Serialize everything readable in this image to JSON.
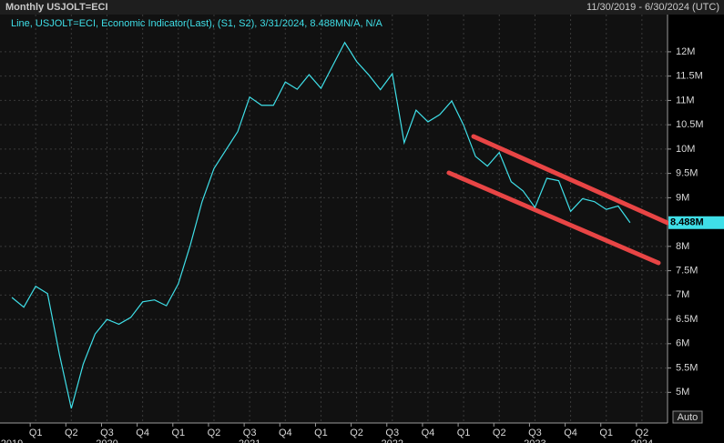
{
  "header": {
    "title": "Monthly USJOLT=ECI",
    "range": "11/30/2019 - 6/30/2024 (UTC)"
  },
  "chart_data": {
    "type": "line",
    "legend_text": "Line, USJOLT=ECI, Economic Indicator(Last), (S1, S2), 3/31/2024, 8.488MN/A, N/A",
    "color": "#3fdfe8",
    "x": [
      "2019-11",
      "2019-12",
      "2020-01",
      "2020-02",
      "2020-03",
      "2020-04",
      "2020-05",
      "2020-06",
      "2020-07",
      "2020-08",
      "2020-09",
      "2020-10",
      "2020-11",
      "2020-12",
      "2021-01",
      "2021-02",
      "2021-03",
      "2021-04",
      "2021-05",
      "2021-06",
      "2021-07",
      "2021-08",
      "2021-09",
      "2021-10",
      "2021-11",
      "2021-12",
      "2022-01",
      "2022-02",
      "2022-03",
      "2022-04",
      "2022-05",
      "2022-06",
      "2022-07",
      "2022-08",
      "2022-09",
      "2022-10",
      "2022-11",
      "2022-12",
      "2023-01",
      "2023-02",
      "2023-03",
      "2023-04",
      "2023-05",
      "2023-06",
      "2023-07",
      "2023-08",
      "2023-09",
      "2023-10",
      "2023-11",
      "2023-12",
      "2024-01",
      "2024-02",
      "2024-03"
    ],
    "values": [
      6.95,
      6.75,
      7.18,
      7.03,
      5.78,
      4.67,
      5.58,
      6.2,
      6.5,
      6.4,
      6.54,
      6.86,
      6.9,
      6.78,
      7.23,
      8.02,
      8.92,
      9.6,
      9.98,
      10.36,
      11.07,
      10.9,
      10.9,
      11.38,
      11.23,
      11.53,
      11.25,
      11.72,
      12.19,
      11.8,
      11.53,
      11.22,
      11.55,
      10.13,
      10.8,
      10.56,
      10.71,
      10.99,
      10.49,
      9.85,
      9.65,
      9.93,
      9.33,
      9.14,
      8.8,
      9.4,
      9.35,
      8.72,
      8.98,
      8.92,
      8.76,
      8.83,
      8.488
    ],
    "last_value": {
      "value": 8.488,
      "label": "8.488M"
    },
    "xlim": [
      "2019-10",
      "2024-06"
    ],
    "xticks": [
      {
        "value": "2020-01",
        "label": "Q1"
      },
      {
        "value": "2020-04",
        "label": "Q2"
      },
      {
        "value": "2020-07",
        "label": "Q3"
      },
      {
        "value": "2020-10",
        "label": "Q4"
      },
      {
        "value": "2021-01",
        "label": "Q1"
      },
      {
        "value": "2021-04",
        "label": "Q2"
      },
      {
        "value": "2021-07",
        "label": "Q3"
      },
      {
        "value": "2021-10",
        "label": "Q4"
      },
      {
        "value": "2022-01",
        "label": "Q1"
      },
      {
        "value": "2022-04",
        "label": "Q2"
      },
      {
        "value": "2022-07",
        "label": "Q3"
      },
      {
        "value": "2022-10",
        "label": "Q4"
      },
      {
        "value": "2023-01",
        "label": "Q1"
      },
      {
        "value": "2023-04",
        "label": "Q2"
      },
      {
        "value": "2023-07",
        "label": "Q3"
      },
      {
        "value": "2023-10",
        "label": "Q4"
      },
      {
        "value": "2024-01",
        "label": "Q1"
      },
      {
        "value": "2024-04",
        "label": "Q2"
      }
    ],
    "year_ticks": [
      {
        "value": "2019-11",
        "label": "2019"
      },
      {
        "value": "2020-07",
        "label": "2020"
      },
      {
        "value": "2021-07",
        "label": "2021"
      },
      {
        "value": "2022-07",
        "label": "2022"
      },
      {
        "value": "2023-07",
        "label": "2023"
      },
      {
        "value": "2024-04",
        "label": "2024"
      }
    ],
    "ylim": [
      4.37,
      12.41
    ],
    "yticks": [
      {
        "value": 5,
        "label": "5M"
      },
      {
        "value": 5.5,
        "label": "5.5M"
      },
      {
        "value": 6,
        "label": "6M"
      },
      {
        "value": 6.5,
        "label": "6.5M"
      },
      {
        "value": 7,
        "label": "7M"
      },
      {
        "value": 7.5,
        "label": "7.5M"
      },
      {
        "value": 8,
        "label": "8M"
      },
      {
        "value": 9,
        "label": "9M"
      },
      {
        "value": 9.5,
        "label": "9.5M"
      },
      {
        "value": 10,
        "label": "10M"
      },
      {
        "value": 10.5,
        "label": "10.5M"
      },
      {
        "value": 11,
        "label": "11M"
      },
      {
        "value": 11.5,
        "label": "11.5M"
      },
      {
        "value": 12,
        "label": "12M"
      }
    ],
    "grid": true,
    "scale_button": "Auto"
  }
}
